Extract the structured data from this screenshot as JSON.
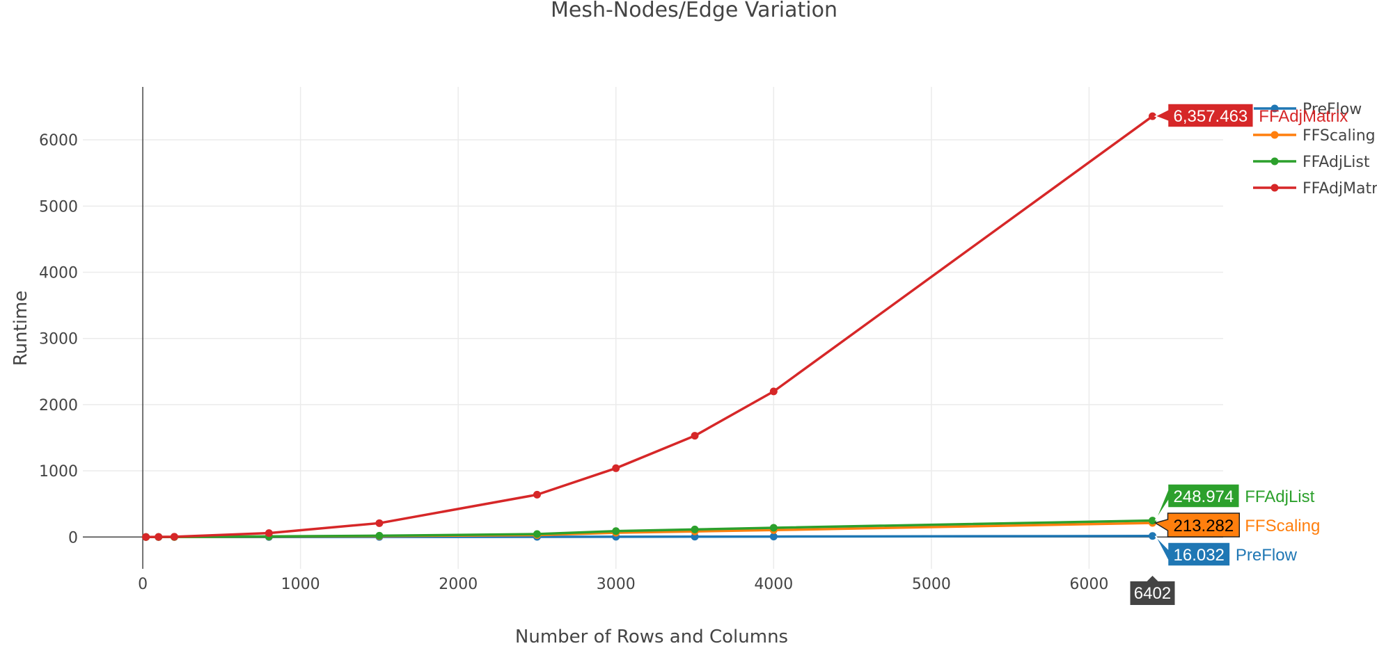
{
  "chart_data": {
    "type": "line",
    "title": "Mesh-Nodes/Edge Variation",
    "xlabel": "Number of Rows and Columns",
    "ylabel": "Runtime",
    "xlim": [
      -380,
      6850
    ],
    "ylim": [
      -480,
      6800
    ],
    "grid": true,
    "legend_position": "top-right",
    "x_ticks": [
      0,
      1000,
      2000,
      3000,
      4000,
      5000,
      6000
    ],
    "y_ticks": [
      0,
      1000,
      2000,
      3000,
      4000,
      5000,
      6000
    ],
    "x_tick_labels": [
      "0",
      "1000",
      "2000",
      "3000",
      "4000",
      "5000",
      "6000"
    ],
    "y_tick_labels": [
      "0",
      "1000",
      "2000",
      "3000",
      "4000",
      "5000",
      "6000"
    ],
    "x": [
      20,
      100,
      200,
      800,
      1500,
      2500,
      3000,
      3500,
      4000,
      6402
    ],
    "series": [
      {
        "name": "PreFlow",
        "color": "#1f77b4",
        "values": [
          0.1,
          0.2,
          0.3,
          0.8,
          1.5,
          3.0,
          4.5,
          6.0,
          7.5,
          16.032
        ]
      },
      {
        "name": "FFScaling",
        "color": "#ff7f0e",
        "values": [
          0.2,
          0.5,
          1.0,
          7.0,
          14.0,
          30.0,
          65.0,
          85.0,
          105.0,
          213.282
        ]
      },
      {
        "name": "FFAdjList",
        "color": "#2ca02c",
        "values": [
          0.3,
          0.6,
          1.5,
          10.0,
          20.0,
          45.0,
          90.0,
          115.0,
          140.0,
          248.974
        ]
      },
      {
        "name": "FFAdjMatrix",
        "color": "#d62728",
        "values": [
          0.5,
          2.0,
          5.0,
          60.0,
          210.0,
          640.0,
          1040.0,
          1530.0,
          2200.0,
          6357.463
        ]
      }
    ],
    "hover": {
      "x_label": "6402",
      "labels": [
        {
          "series": "FFAdjMatrix",
          "value": "6,357.463"
        },
        {
          "series": "FFAdjList",
          "value": "248.974"
        },
        {
          "series": "FFScaling",
          "value": "213.282"
        },
        {
          "series": "PreFlow",
          "value": "16.032"
        }
      ]
    }
  }
}
